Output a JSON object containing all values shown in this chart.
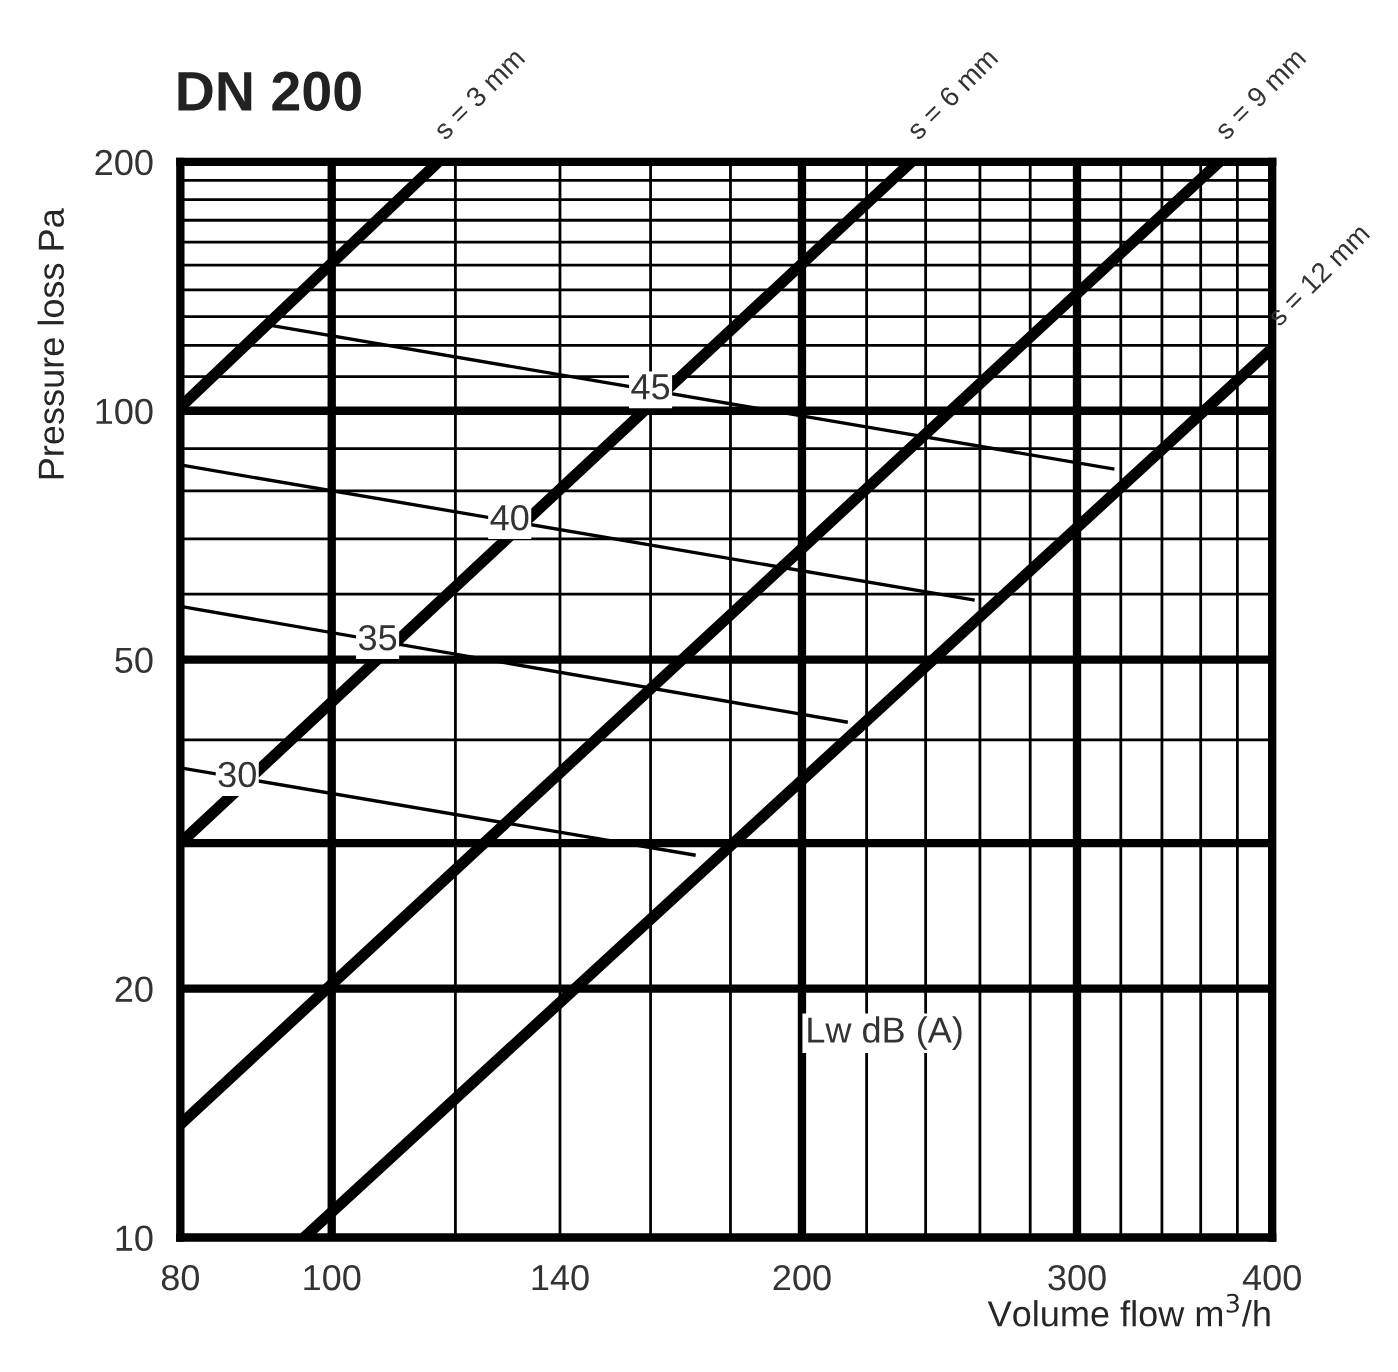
{
  "chart_data": {
    "type": "line",
    "title": "DN 200",
    "xlabel": "Volume flow m$^{3}$/h",
    "ylabel": "Pressure loss Pa",
    "log": "xy",
    "grid": true,
    "legend": false,
    "marker": "none",
    "line_style": "solid",
    "xlim": [
      80,
      400
    ],
    "ylim": [
      10,
      200
    ],
    "xticks": [
      80,
      100,
      {
        "value": 120,
        "label": null
      },
      140,
      {
        "value": 160,
        "label": null
      },
      {
        "value": 180,
        "label": null
      },
      200,
      {
        "value": 220,
        "label": null
      },
      {
        "value": 240,
        "label": null
      },
      {
        "value": 260,
        "label": null
      },
      {
        "value": 280,
        "label": null
      },
      300,
      {
        "value": 320,
        "label": null
      },
      {
        "value": 340,
        "label": null
      },
      {
        "value": 360,
        "label": null
      },
      {
        "value": 380,
        "label": null
      },
      400
    ],
    "yticks": [
      10,
      20,
      {
        "value": 30,
        "label": null
      },
      {
        "value": 40,
        "label": null
      },
      50,
      {
        "value": 60,
        "label": null
      },
      {
        "value": 70,
        "label": null
      },
      {
        "value": 80,
        "label": null
      },
      {
        "value": 90,
        "label": null
      },
      100,
      {
        "value": 110,
        "label": null
      },
      {
        "value": 120,
        "label": null
      },
      {
        "value": 130,
        "label": null
      },
      {
        "value": 140,
        "label": null
      },
      {
        "value": 150,
        "label": null
      },
      {
        "value": 160,
        "label": null
      },
      {
        "value": 170,
        "label": null
      },
      {
        "value": 180,
        "label": null
      },
      {
        "value": 190,
        "label": null
      },
      200
    ],
    "series": [
      {
        "name": "s = 3 mm",
        "color": "#000000",
        "x": [
          80,
          117
        ],
        "values": [
          101,
          200
        ]
      },
      {
        "name": "s = 6 mm",
        "color": "#000000",
        "x": [
          80,
          235
        ],
        "values": [
          30,
          200
        ]
      },
      {
        "name": "s = 9 mm",
        "color": "#000000",
        "x": [
          80,
          370
        ],
        "values": [
          13.7,
          200
        ]
      },
      {
        "name": "s = 12 mm",
        "color": "#000000",
        "x": [
          96,
          400
        ],
        "values": [
          10,
          119
        ]
      },
      {
        "color": "#000000",
        "x": [
          91,
          317
        ],
        "values": [
          127,
          85
        ]
      },
      {
        "color": "#000000",
        "x": [
          80,
          258
        ],
        "values": [
          86,
          59
        ]
      },
      {
        "color": "#000000",
        "x": [
          80,
          214
        ],
        "values": [
          58,
          42
        ]
      },
      {
        "color": "#000000",
        "x": [
          80,
          171
        ],
        "values": [
          37,
          29
        ]
      }
    ],
    "annotations": [
      {
        "text": "45",
        "x": 160,
        "y": 106
      },
      {
        "text": "40",
        "x": 130,
        "y": 73.6
      },
      {
        "text": "35",
        "x": 107,
        "y": 52.7
      },
      {
        "text": "30",
        "x": 87,
        "y": 36
      },
      "Lw dB (A)"
    ]
  }
}
